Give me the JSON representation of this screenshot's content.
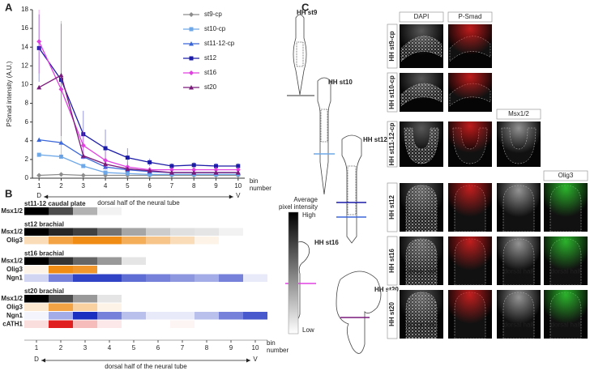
{
  "chart_data": [
    {
      "type": "line",
      "panel": "A",
      "y_label": "PSmad intensity (A.U.)",
      "x_label": [
        "bin",
        "number"
      ],
      "axis_caption": "dorsal half of the neural tube",
      "axis_start": "D",
      "axis_end": "V",
      "x": [
        1,
        2,
        3,
        4,
        5,
        6,
        7,
        8,
        9,
        10
      ],
      "xlim": [
        0.7,
        10.3
      ],
      "xticks": [
        1,
        2,
        3,
        4,
        5,
        6,
        7,
        8,
        9,
        10
      ],
      "ylim": [
        0,
        18
      ],
      "yticks": [
        0,
        2,
        4,
        6,
        8,
        10,
        12,
        14,
        16,
        18
      ],
      "legend": "upper right",
      "series": [
        {
          "name": "st9-cp",
          "color": "#8c8c8c",
          "marker": "diamond",
          "values": [
            0.3,
            0.4,
            0.3,
            0.3,
            0.3,
            0.3,
            0.3,
            0.3,
            0.3,
            0.3
          ]
        },
        {
          "name": "st10-cp",
          "color": "#6fa8e8",
          "marker": "square",
          "values": [
            2.5,
            2.3,
            1.3,
            0.6,
            0.5,
            0.4,
            0.4,
            0.4,
            0.4,
            0.4
          ]
        },
        {
          "name": "st11-12-cp",
          "color": "#3a66d8",
          "marker": "triangle",
          "values": [
            4.1,
            3.8,
            2.3,
            1.2,
            0.9,
            0.7,
            0.6,
            0.6,
            0.6,
            0.6
          ]
        },
        {
          "name": "st12",
          "color": "#1c1ca8",
          "marker": "square",
          "values": [
            13.9,
            10.5,
            4.7,
            3.2,
            2.2,
            1.7,
            1.3,
            1.4,
            1.3,
            1.3
          ],
          "errors": [
            3.6,
            6.0,
            2.5,
            2.0,
            1.0,
            0.4,
            0.3,
            0.3,
            0.3,
            0.3
          ]
        },
        {
          "name": "st16",
          "color": "#e040e0",
          "marker": "diamond",
          "values": [
            14.6,
            9.5,
            3.5,
            1.9,
            1.2,
            0.9,
            0.9,
            0.9,
            0.9,
            0.9
          ],
          "errors": [
            3.4,
            7.3,
            1.5,
            1.0,
            0.5,
            0.3,
            0.3,
            0.3,
            0.3,
            0.3
          ]
        },
        {
          "name": "st20",
          "color": "#7a1a7a",
          "marker": "triangle",
          "values": [
            9.7,
            11.0,
            2.4,
            1.5,
            1.0,
            0.8,
            0.6,
            0.6,
            0.6,
            0.6
          ]
        }
      ]
    },
    {
      "type": "heatmap",
      "panel": "B",
      "x_label": [
        "bin",
        "number"
      ],
      "axis_caption": "dorsal half of the neural tube",
      "axis_start": "D",
      "axis_end": "V",
      "xlim": [
        0.5,
        10.5
      ],
      "xticks": [
        1,
        2,
        3,
        4,
        5,
        6,
        7,
        8,
        9,
        10
      ],
      "colorbar": {
        "title": [
          "Average",
          "pixel intensity"
        ],
        "high": "High",
        "low": "Low"
      },
      "groups": [
        {
          "title": "st11-12 caudal plate",
          "rows": [
            {
              "name": "Msx1/2",
              "color": "#000000",
              "values": [
                1,
                0.7,
                0.3,
                0.05,
                0,
                0,
                0,
                0,
                0,
                0
              ]
            }
          ]
        },
        {
          "title": "st12 brachial",
          "rows": [
            {
              "name": "Msx1/2",
              "color": "#000000",
              "values": [
                1,
                0.85,
                0.75,
                0.55,
                0.35,
                0.2,
                0.12,
                0.1,
                0.05,
                0
              ]
            },
            {
              "name": "Olig3",
              "color": "#f08c14",
              "values": [
                0.3,
                0.8,
                1,
                1,
                0.7,
                0.5,
                0.3,
                0.1,
                0,
                0
              ]
            }
          ]
        },
        {
          "title": "st16 brachial",
          "rows": [
            {
              "name": "Msx1/2",
              "color": "#000000",
              "values": [
                1,
                0.8,
                0.6,
                0.4,
                0.1,
                0,
                0,
                0,
                0,
                0
              ]
            },
            {
              "name": "Olig3",
              "color": "#f08c14",
              "values": [
                0.1,
                1,
                0.9,
                0,
                0,
                0,
                0,
                0,
                0,
                0
              ]
            },
            {
              "name": "Ngn1",
              "color": "#1a2fc0",
              "values": [
                0.2,
                0.6,
                0.9,
                0.9,
                0.7,
                0.6,
                0.5,
                0.4,
                0.6,
                0.1
              ]
            }
          ]
        },
        {
          "title": "st20 brachial",
          "rows": [
            {
              "name": "Msx1/2",
              "color": "#000000",
              "values": [
                1,
                0.7,
                0.4,
                0.1,
                0,
                0,
                0,
                0,
                0,
                0
              ]
            },
            {
              "name": "Olig3",
              "color": "#f08c14",
              "values": [
                0.2,
                0.8,
                0.4,
                0.1,
                0,
                0,
                0,
                0,
                0,
                0
              ]
            },
            {
              "name": "Ngn1",
              "color": "#1a2fc0",
              "values": [
                0.05,
                0.4,
                1,
                0.6,
                0.3,
                0.1,
                0.1,
                0.3,
                0.6,
                0.8
              ]
            },
            {
              "name": "cATH1",
              "color": "#e02020",
              "values": [
                0.15,
                1,
                0.3,
                0.1,
                0,
                0,
                0.05,
                0,
                0,
                0
              ]
            }
          ]
        }
      ]
    }
  ],
  "panel_c": {
    "label": "C",
    "embryos": [
      "HH st9",
      "HH st10",
      "HH st12",
      "HH st16",
      "HH st20"
    ],
    "columns": [
      {
        "label": "DAPI",
        "color": "#000000"
      },
      {
        "label": "P-Smad",
        "color": "#e02020"
      },
      {
        "label": "Msx1/2",
        "color": "#000000"
      },
      {
        "label": "Olig3",
        "color": "#1a9a1a"
      }
    ],
    "rows": [
      "HH st9-cp",
      "HH st10-cp",
      "HH st11-12-cp",
      "HH st12",
      "HH st16",
      "HH st20"
    ],
    "note": "dorsal half"
  }
}
